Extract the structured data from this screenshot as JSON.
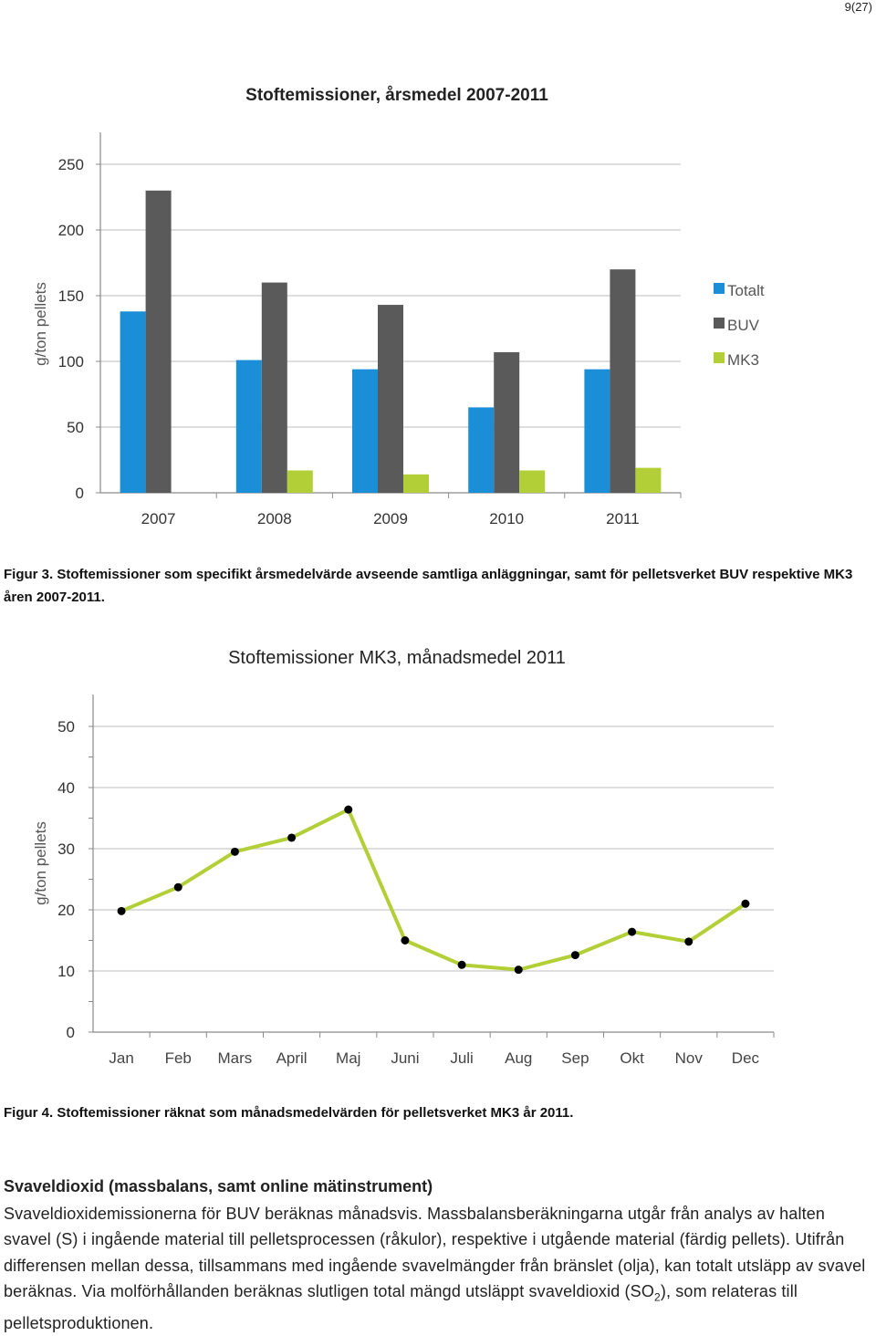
{
  "page_number": "9(27)",
  "colors": {
    "totalt": "#1a8fd8",
    "buv": "#5a5a5a",
    "mk3": "#b3cf37",
    "grid": "#c9c9c9",
    "axis": "#8a8a8a"
  },
  "chart_data": [
    {
      "type": "bar",
      "title": "Stoftemissioner, årsmedel 2007-2011",
      "ylabel": "g/ton pellets",
      "categories": [
        "2007",
        "2008",
        "2009",
        "2010",
        "2011"
      ],
      "ylim": [
        0,
        250
      ],
      "yticks": [
        "0",
        "50",
        "100",
        "150",
        "200",
        "250"
      ],
      "grid": true,
      "legend_position": "right",
      "series": [
        {
          "name": "Totalt",
          "values": [
            138,
            101,
            94,
            65,
            94
          ]
        },
        {
          "name": "BUV",
          "values": [
            230,
            160,
            143,
            107,
            170
          ]
        },
        {
          "name": "MK3",
          "values": [
            null,
            17,
            14,
            17,
            19
          ]
        }
      ]
    },
    {
      "type": "line",
      "title": "Stoftemissioner MK3, månadsmedel 2011",
      "ylabel": "g/ton pellets",
      "categories": [
        "Jan",
        "Feb",
        "Mars",
        "April",
        "Maj",
        "Juni",
        "Juli",
        "Aug",
        "Sep",
        "Okt",
        "Nov",
        "Dec"
      ],
      "ylim": [
        0,
        50
      ],
      "yticks": [
        "0",
        "10",
        "20",
        "30",
        "40",
        "50"
      ],
      "grid": true,
      "series": [
        {
          "values": [
            19.8,
            23.7,
            29.5,
            31.8,
            36.4,
            15.0,
            11.0,
            10.2,
            12.6,
            16.4,
            14.8,
            21.0
          ]
        }
      ]
    }
  ],
  "captions": {
    "fig3": "Figur 3. Stoftemissioner som specifikt årsmedelvärde avseende samtliga anläggningar, samt för pelletsverket BUV respektive MK3 åren 2007-2011.",
    "fig4": "Figur 4. Stoftemissioner räknat som månadsmedelvärden för pelletsverket MK3 år 2011."
  },
  "section": {
    "heading": "Svaveldioxid (massbalans, samt online mätinstrument)",
    "paragraph_pre": "Svaveldioxidemissionerna för BUV beräknas månadsvis. Massbalansberäkningarna utgår från analys av halten svavel (S) i ingående material till pelletsprocessen (råkulor), respektive i utgående material (färdig pellets). Utifrån differensen mellan dessa, tillsammans med ingående svavelmängder från bränslet (olja), kan totalt utsläpp av svavel beräknas. Via molförhållanden beräknas slutligen total mängd utsläppt svaveldioxid (SO",
    "paragraph_sub": "2",
    "paragraph_post": "), som relateras till pelletsproduktionen."
  }
}
